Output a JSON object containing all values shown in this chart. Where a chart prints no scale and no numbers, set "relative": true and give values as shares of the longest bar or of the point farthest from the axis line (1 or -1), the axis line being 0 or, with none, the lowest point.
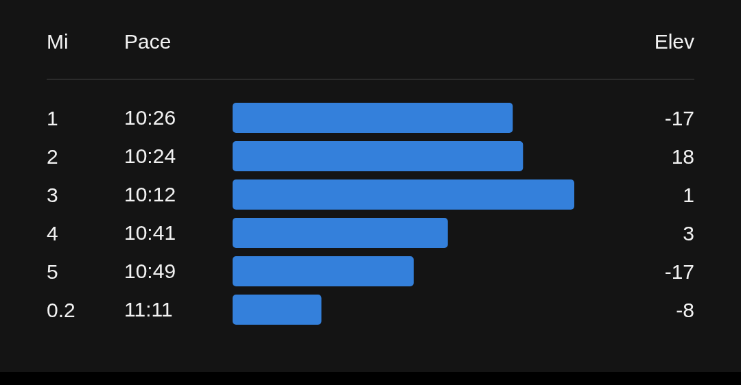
{
  "chart_data": {
    "type": "bar",
    "orientation": "horizontal",
    "relative": true,
    "categories": [
      "1",
      "2",
      "3",
      "4",
      "5",
      "0.2"
    ],
    "values": [
      0.82,
      0.85,
      1,
      0.63,
      0.53,
      0.26
    ],
    "color": "#3480db",
    "annotations": [
      "10:26",
      "10:24",
      "10:12",
      "10:41",
      "10:49",
      "11:11"
    ],
    "xlabel": "Pace",
    "ylabel": "Mi",
    "y2label": "Elev",
    "y2_categories": [
      "-17",
      "18",
      "1",
      "3",
      "-17",
      "-8"
    ]
  }
}
